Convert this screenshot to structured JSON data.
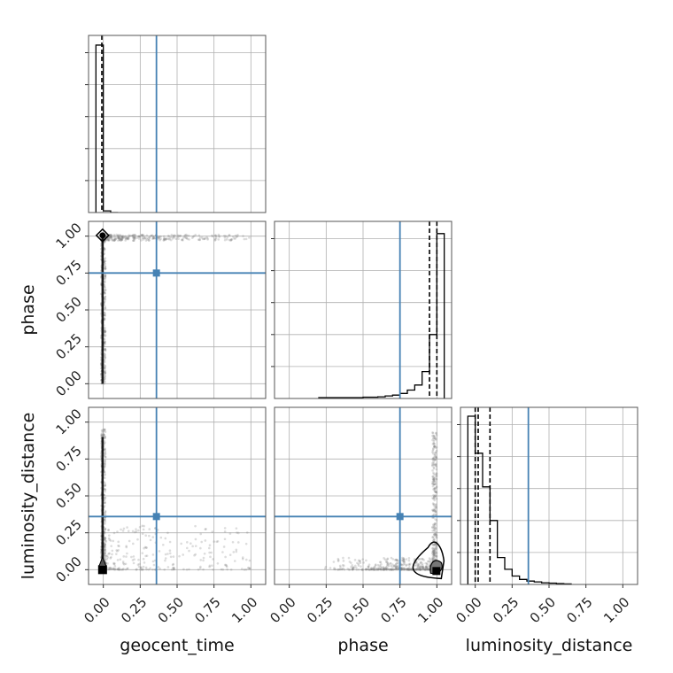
{
  "chart_data": {
    "type": "corner",
    "parameters": [
      "geocent_time",
      "phase",
      "luminosity_distance"
    ],
    "axis_range": [
      -0.1,
      1.1
    ],
    "tick_values": [
      0.0,
      0.25,
      0.5,
      0.75,
      1.0
    ],
    "tick_labels": [
      "0.00",
      "0.25",
      "0.50",
      "0.75",
      "1.00"
    ],
    "truths": {
      "geocent_time": 0.36,
      "phase": 0.75,
      "luminosity_distance": 0.36
    },
    "grid": true,
    "colors": {
      "truth": "#4682b4",
      "hist": "#000000",
      "samples": "#777777",
      "grid": "#b0b0b0",
      "frame": "#555555"
    },
    "histograms": {
      "geocent_time": {
        "bin_edges": [
          -0.05,
          0.0,
          0.05,
          0.1
        ],
        "counts": [
          0.995,
          0.01,
          0.0
        ],
        "quantile_lines": [
          -0.01
        ]
      },
      "phase": {
        "bin_edges": [
          0.2,
          0.3,
          0.4,
          0.5,
          0.6,
          0.65,
          0.7,
          0.75,
          0.8,
          0.85,
          0.9,
          0.95,
          1.0,
          1.05
        ],
        "counts": [
          0.005,
          0.005,
          0.005,
          0.008,
          0.01,
          0.015,
          0.02,
          0.03,
          0.05,
          0.08,
          0.16,
          0.38,
          0.98
        ],
        "quantile_lines": [
          0.95,
          1.0
        ]
      },
      "luminosity_distance": {
        "bin_edges": [
          -0.05,
          0.0,
          0.05,
          0.1,
          0.15,
          0.2,
          0.25,
          0.3,
          0.35,
          0.4,
          0.45,
          0.5,
          0.55,
          0.6,
          0.65
        ],
        "counts": [
          1.0,
          0.78,
          0.58,
          0.38,
          0.16,
          0.09,
          0.05,
          0.03,
          0.02,
          0.015,
          0.01,
          0.008,
          0.005,
          0.003
        ],
        "quantile_lines": [
          0.0,
          0.02,
          0.1
        ]
      }
    }
  }
}
